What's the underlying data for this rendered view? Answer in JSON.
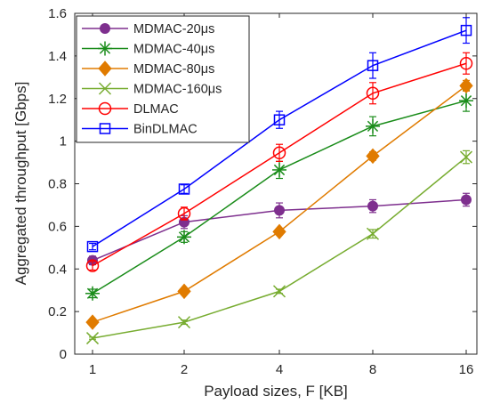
{
  "chart_data": {
    "type": "line",
    "title": "",
    "xlabel": "Payload sizes, F [KB]",
    "ylabel": "Aggregated throughput [Gbps]",
    "categories": [
      "1",
      "2",
      "4",
      "8",
      "16"
    ],
    "ylim": [
      0,
      1.6
    ],
    "yticks": [
      "0",
      "0.2",
      "0.4",
      "0.6",
      "0.8",
      "1",
      "1.2",
      "1.4",
      "1.6"
    ],
    "grid": false,
    "legend_position": "top-left",
    "series": [
      {
        "name": "MDMAC-20μs",
        "marker": "circle-filled",
        "color": "#7e2f8e",
        "values": [
          0.44,
          0.62,
          0.675,
          0.695,
          0.725
        ],
        "errors": [
          0.02,
          0.03,
          0.035,
          0.03,
          0.03
        ]
      },
      {
        "name": "MDMAC-40μs",
        "marker": "asterisk",
        "color": "#1a8c1a",
        "values": [
          0.285,
          0.55,
          0.865,
          1.07,
          1.19
        ],
        "errors": [
          0.02,
          0.025,
          0.04,
          0.045,
          0.05
        ]
      },
      {
        "name": "MDMAC-80μs",
        "marker": "diamond-filled",
        "color": "#e07b00",
        "values": [
          0.15,
          0.295,
          0.575,
          0.93,
          1.26
        ],
        "errors": [
          0.01,
          0.01,
          0.015,
          0.02,
          0.025
        ]
      },
      {
        "name": "MDMAC-160μs",
        "marker": "x",
        "color": "#77ac30",
        "values": [
          0.075,
          0.15,
          0.295,
          0.565,
          0.925
        ],
        "errors": [
          0.005,
          0.01,
          0.01,
          0.02,
          0.03
        ]
      },
      {
        "name": "DLMAC",
        "marker": "circle-open",
        "color": "#ff0000",
        "values": [
          0.415,
          0.66,
          0.945,
          1.225,
          1.365
        ],
        "errors": [
          0.02,
          0.03,
          0.04,
          0.05,
          0.05
        ]
      },
      {
        "name": "BinDLMAC",
        "marker": "square-open",
        "color": "#0000ff",
        "values": [
          0.505,
          0.775,
          1.1,
          1.355,
          1.52
        ],
        "errors": [
          0.015,
          0.02,
          0.04,
          0.06,
          0.06
        ]
      }
    ]
  }
}
